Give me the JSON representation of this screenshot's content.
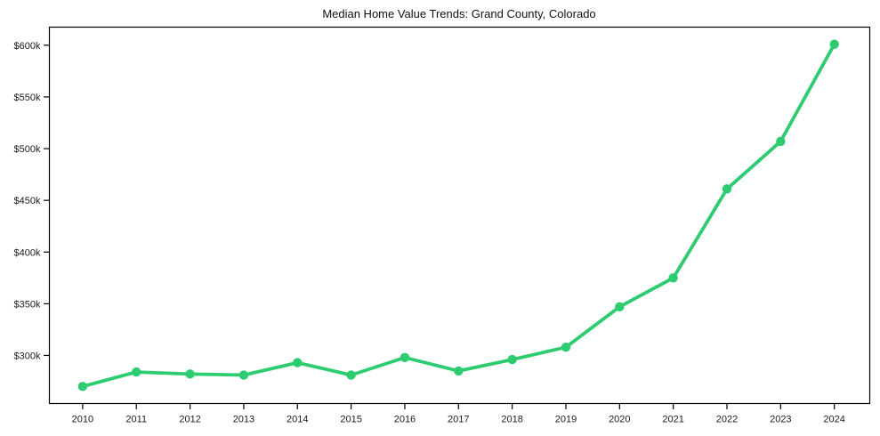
{
  "chart_data": {
    "type": "line",
    "title": "Median Home Value Trends: Grand County, Colorado",
    "xlabel": "",
    "ylabel": "",
    "x": [
      2010,
      2011,
      2012,
      2013,
      2014,
      2015,
      2016,
      2017,
      2018,
      2019,
      2020,
      2021,
      2022,
      2023,
      2024
    ],
    "values": [
      270,
      284,
      282,
      281,
      293,
      281,
      298,
      285,
      296,
      308,
      347,
      375,
      461,
      507,
      601
    ],
    "value_unit": "thousand USD",
    "x_tick_labels": [
      "2010",
      "2011",
      "2012",
      "2013",
      "2014",
      "2015",
      "2016",
      "2017",
      "2018",
      "2019",
      "2020",
      "2021",
      "2022",
      "2023",
      "2024"
    ],
    "y_tick_values": [
      300,
      350,
      400,
      450,
      500,
      550,
      600
    ],
    "y_tick_labels": [
      "$300k",
      "$350k",
      "$400k",
      "$450k",
      "$500k",
      "$550k",
      "$600k"
    ],
    "xlim": [
      2009.38,
      2024.66
    ],
    "ylim": [
      253.5,
      617.5
    ],
    "grid": false,
    "legend": false,
    "marker": "circle",
    "line_color": "#2ecc71",
    "axis_color": "#000000",
    "text_color": "#1a1a1a",
    "background_color": "#ffffff"
  }
}
